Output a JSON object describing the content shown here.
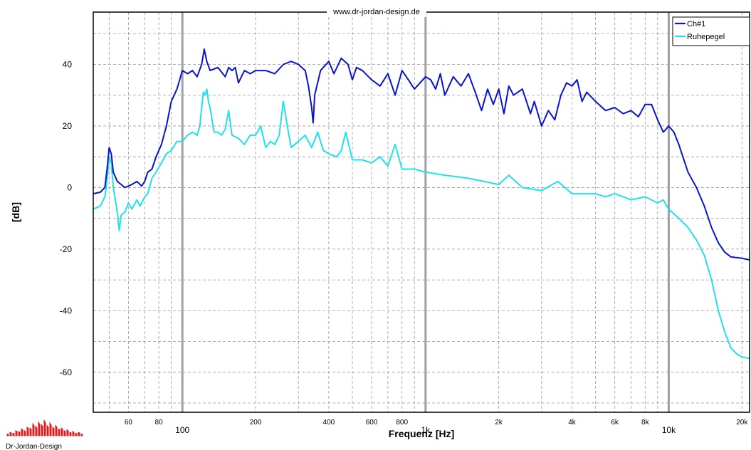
{
  "watermark": "www.dr-jordan-design.de",
  "logo_text": "Dr-Jordan-Design",
  "chart_data": {
    "type": "line",
    "xlabel": "Frequenz [Hz]",
    "ylabel": "[dB]",
    "xscale": "log",
    "xlim": [
      43,
      21500
    ],
    "ylim": [
      -73,
      57
    ],
    "grid": true,
    "legend_position": "top-right",
    "x_ticks_major": [
      {
        "value": 100,
        "label": "100"
      },
      {
        "value": 1000,
        "label": "1k"
      },
      {
        "value": 10000,
        "label": "10k"
      }
    ],
    "x_ticks_minor": [
      {
        "value": 60,
        "label": "60"
      },
      {
        "value": 80,
        "label": "80"
      },
      {
        "value": 200,
        "label": "200"
      },
      {
        "value": 400,
        "label": "400"
      },
      {
        "value": 600,
        "label": "600"
      },
      {
        "value": 800,
        "label": "800"
      },
      {
        "value": 2000,
        "label": "2k"
      },
      {
        "value": 4000,
        "label": "4k"
      },
      {
        "value": 6000,
        "label": "6k"
      },
      {
        "value": 8000,
        "label": "8k"
      },
      {
        "value": 20000,
        "label": "20k"
      }
    ],
    "y_ticks": [
      {
        "value": 40,
        "label": "40"
      },
      {
        "value": 20,
        "label": "20"
      },
      {
        "value": 0,
        "label": "0"
      },
      {
        "value": -20,
        "label": "-20"
      },
      {
        "value": -40,
        "label": "-40"
      },
      {
        "value": -60,
        "label": "-60"
      }
    ],
    "series": [
      {
        "name": "Ch#1",
        "color": "#0a14c8",
        "points": [
          [
            43,
            -2
          ],
          [
            46,
            -1.5
          ],
          [
            48,
            0
          ],
          [
            49,
            6
          ],
          [
            50,
            13
          ],
          [
            51,
            11
          ],
          [
            52,
            5
          ],
          [
            54,
            2
          ],
          [
            56,
            1
          ],
          [
            58,
            0
          ],
          [
            62,
            1
          ],
          [
            65,
            2
          ],
          [
            68,
            0.5
          ],
          [
            70,
            2
          ],
          [
            72,
            5
          ],
          [
            75,
            6
          ],
          [
            78,
            10
          ],
          [
            82,
            14
          ],
          [
            86,
            20
          ],
          [
            90,
            28
          ],
          [
            95,
            32
          ],
          [
            100,
            38
          ],
          [
            105,
            37
          ],
          [
            110,
            38
          ],
          [
            115,
            36
          ],
          [
            120,
            40
          ],
          [
            123,
            45
          ],
          [
            126,
            41
          ],
          [
            130,
            38
          ],
          [
            140,
            39
          ],
          [
            150,
            36
          ],
          [
            155,
            39
          ],
          [
            160,
            38
          ],
          [
            165,
            39
          ],
          [
            170,
            34
          ],
          [
            180,
            38
          ],
          [
            190,
            37
          ],
          [
            200,
            38
          ],
          [
            220,
            38
          ],
          [
            240,
            37
          ],
          [
            260,
            40
          ],
          [
            280,
            41
          ],
          [
            300,
            40
          ],
          [
            320,
            38
          ],
          [
            330,
            33
          ],
          [
            340,
            26
          ],
          [
            345,
            21
          ],
          [
            350,
            30
          ],
          [
            370,
            38
          ],
          [
            400,
            41
          ],
          [
            420,
            37
          ],
          [
            450,
            42
          ],
          [
            480,
            40
          ],
          [
            500,
            35
          ],
          [
            520,
            39
          ],
          [
            550,
            38
          ],
          [
            600,
            35
          ],
          [
            650,
            33
          ],
          [
            700,
            37
          ],
          [
            750,
            30
          ],
          [
            800,
            38
          ],
          [
            850,
            35
          ],
          [
            900,
            32
          ],
          [
            1000,
            36
          ],
          [
            1050,
            35
          ],
          [
            1100,
            32
          ],
          [
            1150,
            37
          ],
          [
            1200,
            30
          ],
          [
            1300,
            36
          ],
          [
            1400,
            33
          ],
          [
            1500,
            37
          ],
          [
            1600,
            31
          ],
          [
            1700,
            25
          ],
          [
            1800,
            32
          ],
          [
            1900,
            27
          ],
          [
            2000,
            32
          ],
          [
            2100,
            24
          ],
          [
            2200,
            33
          ],
          [
            2300,
            30
          ],
          [
            2400,
            31
          ],
          [
            2500,
            32
          ],
          [
            2600,
            28
          ],
          [
            2700,
            24
          ],
          [
            2800,
            28
          ],
          [
            3000,
            20
          ],
          [
            3200,
            25
          ],
          [
            3400,
            22
          ],
          [
            3600,
            30
          ],
          [
            3800,
            34
          ],
          [
            4000,
            33
          ],
          [
            4200,
            35
          ],
          [
            4400,
            28
          ],
          [
            4600,
            31
          ],
          [
            5000,
            28
          ],
          [
            5500,
            25
          ],
          [
            6000,
            26
          ],
          [
            6500,
            24
          ],
          [
            7000,
            25
          ],
          [
            7500,
            23
          ],
          [
            8000,
            27
          ],
          [
            8500,
            27
          ],
          [
            9000,
            22
          ],
          [
            9500,
            18
          ],
          [
            10000,
            20
          ],
          [
            10500,
            18
          ],
          [
            11000,
            14
          ],
          [
            12000,
            5
          ],
          [
            13000,
            0
          ],
          [
            14000,
            -6
          ],
          [
            15000,
            -13
          ],
          [
            16000,
            -18
          ],
          [
            17000,
            -21
          ],
          [
            18000,
            -22.5
          ],
          [
            20000,
            -23
          ],
          [
            21500,
            -23.5
          ]
        ]
      },
      {
        "name": "Ruhepegel",
        "color": "#22e0e8",
        "points": [
          [
            43,
            -7
          ],
          [
            46,
            -6
          ],
          [
            48,
            -3
          ],
          [
            49,
            2
          ],
          [
            50,
            10
          ],
          [
            51,
            8
          ],
          [
            52,
            0
          ],
          [
            54,
            -8
          ],
          [
            55,
            -14
          ],
          [
            56,
            -9
          ],
          [
            58,
            -8
          ],
          [
            60,
            -5
          ],
          [
            62,
            -7
          ],
          [
            65,
            -4
          ],
          [
            67,
            -6
          ],
          [
            70,
            -3
          ],
          [
            72,
            -2
          ],
          [
            75,
            3
          ],
          [
            78,
            5
          ],
          [
            82,
            8
          ],
          [
            86,
            11
          ],
          [
            90,
            12
          ],
          [
            95,
            15
          ],
          [
            100,
            15
          ],
          [
            105,
            17
          ],
          [
            110,
            18
          ],
          [
            115,
            17
          ],
          [
            118,
            20
          ],
          [
            120,
            26
          ],
          [
            122,
            31
          ],
          [
            124,
            30
          ],
          [
            126,
            32
          ],
          [
            128,
            28
          ],
          [
            130,
            26
          ],
          [
            135,
            18
          ],
          [
            140,
            18
          ],
          [
            145,
            17
          ],
          [
            150,
            19
          ],
          [
            155,
            25
          ],
          [
            160,
            17
          ],
          [
            170,
            16
          ],
          [
            180,
            14
          ],
          [
            190,
            17
          ],
          [
            200,
            17
          ],
          [
            210,
            20
          ],
          [
            220,
            13
          ],
          [
            230,
            15
          ],
          [
            240,
            14
          ],
          [
            250,
            17
          ],
          [
            260,
            28
          ],
          [
            270,
            20
          ],
          [
            280,
            13
          ],
          [
            300,
            15
          ],
          [
            320,
            17
          ],
          [
            340,
            13
          ],
          [
            360,
            18
          ],
          [
            380,
            12
          ],
          [
            400,
            11
          ],
          [
            430,
            10
          ],
          [
            450,
            12
          ],
          [
            470,
            18
          ],
          [
            500,
            9
          ],
          [
            550,
            9
          ],
          [
            600,
            8
          ],
          [
            650,
            10
          ],
          [
            700,
            7
          ],
          [
            750,
            14
          ],
          [
            800,
            6
          ],
          [
            900,
            6
          ],
          [
            1000,
            5
          ],
          [
            1200,
            4
          ],
          [
            1500,
            3
          ],
          [
            2000,
            1
          ],
          [
            2200,
            4
          ],
          [
            2500,
            0
          ],
          [
            3000,
            -1
          ],
          [
            3500,
            2
          ],
          [
            4000,
            -2
          ],
          [
            4500,
            -2
          ],
          [
            5000,
            -2
          ],
          [
            5500,
            -3
          ],
          [
            6000,
            -2
          ],
          [
            6500,
            -3
          ],
          [
            7000,
            -4
          ],
          [
            8000,
            -3
          ],
          [
            9000,
            -5
          ],
          [
            9500,
            -4
          ],
          [
            10000,
            -7
          ],
          [
            11000,
            -10
          ],
          [
            12000,
            -13
          ],
          [
            13000,
            -17
          ],
          [
            14000,
            -22
          ],
          [
            15000,
            -30
          ],
          [
            16000,
            -40
          ],
          [
            17000,
            -47
          ],
          [
            18000,
            -52
          ],
          [
            19000,
            -54
          ],
          [
            20000,
            -55
          ],
          [
            21500,
            -55.5
          ]
        ]
      }
    ]
  }
}
